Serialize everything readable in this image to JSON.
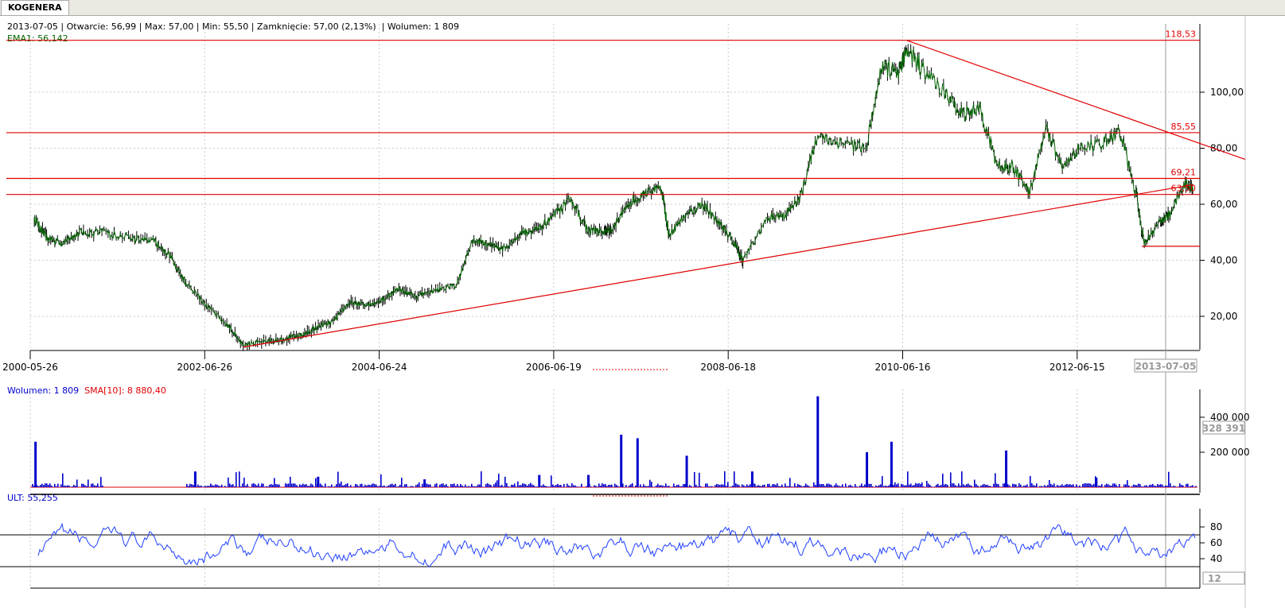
{
  "tab": {
    "label": "KOGENERA"
  },
  "info_line": "2013-07-05 | Otwarcie: 56,99 | Max: 57,00 | Min: 55,50 | Zamknięcie: 57,00 (2,13%)  | Wolumen: 1 809",
  "ema_label": "EMA1: 56,142",
  "volume_legend": {
    "wolumen": "Wolumen: 1 809",
    "sma": "SMA[10]: 8 880,40"
  },
  "ult_legend": "ULT: 55,255",
  "colors": {
    "price": "#006400",
    "bars": "#000000",
    "lines": "#e00000",
    "volume": "#0000cc",
    "ult": "#2040ff",
    "grid": "#c8c8c8"
  },
  "chart_data": [
    {
      "type": "line",
      "name": "price",
      "x_labels": [
        "2000-05-26",
        "2002-06-26",
        "2004-06-24",
        "2006-06-19",
        "2008-06-18",
        "2010-06-16",
        "2012-06-15"
      ],
      "cursor_date": "2013-07-05",
      "y_ticks": [
        "20,00",
        "40,00",
        "60,00",
        "80,00",
        "100,00"
      ],
      "y_tick_values": [
        20,
        40,
        60,
        80,
        100
      ],
      "ylim": [
        8,
        120
      ],
      "horizontal_levels": [
        {
          "value": 118.53,
          "label": "118,53"
        },
        {
          "value": 85.55,
          "label": "85,55"
        },
        {
          "value": 69.21,
          "label": "69,21"
        },
        {
          "value": 63.5,
          "label": "63,50"
        }
      ],
      "series": [
        {
          "values": [
            [
              2000.45,
              55
            ],
            [
              2000.6,
              48
            ],
            [
              2000.8,
              46
            ],
            [
              2001.0,
              50
            ],
            [
              2001.3,
              50
            ],
            [
              2001.6,
              48
            ],
            [
              2001.9,
              47
            ],
            [
              2002.1,
              42
            ],
            [
              2002.3,
              32
            ],
            [
              2002.55,
              24
            ],
            [
              2002.8,
              17
            ],
            [
              2003.0,
              10
            ],
            [
              2003.3,
              11
            ],
            [
              2003.5,
              12
            ],
            [
              2003.7,
              13
            ],
            [
              2003.9,
              16
            ],
            [
              2004.1,
              18
            ],
            [
              2004.3,
              25
            ],
            [
              2004.5,
              24
            ],
            [
              2004.7,
              26
            ],
            [
              2004.9,
              30
            ],
            [
              2005.1,
              27
            ],
            [
              2005.3,
              29
            ],
            [
              2005.6,
              31
            ],
            [
              2005.8,
              47
            ],
            [
              2006.0,
              46
            ],
            [
              2006.2,
              44
            ],
            [
              2006.4,
              50
            ],
            [
              2006.6,
              51
            ],
            [
              2006.8,
              56
            ],
            [
              2007.0,
              62
            ],
            [
              2007.2,
              51
            ],
            [
              2007.4,
              50
            ],
            [
              2007.5,
              51
            ],
            [
              2007.7,
              60
            ],
            [
              2007.9,
              64
            ],
            [
              2008.1,
              66
            ],
            [
              2008.2,
              49
            ],
            [
              2008.4,
              56
            ],
            [
              2008.6,
              60
            ],
            [
              2008.8,
              54
            ],
            [
              2009.0,
              46
            ],
            [
              2009.1,
              40
            ],
            [
              2009.4,
              55
            ],
            [
              2009.6,
              56
            ],
            [
              2009.8,
              62
            ],
            [
              2010.0,
              84
            ],
            [
              2010.3,
              82
            ],
            [
              2010.6,
              80
            ],
            [
              2010.8,
              110
            ],
            [
              2011.0,
              106
            ],
            [
              2011.1,
              116
            ],
            [
              2011.3,
              108
            ],
            [
              2011.6,
              98
            ],
            [
              2011.8,
              92
            ],
            [
              2012.0,
              94
            ],
            [
              2012.2,
              74
            ],
            [
              2012.4,
              73
            ],
            [
              2012.6,
              64
            ],
            [
              2012.8,
              88
            ],
            [
              2013.0,
              72
            ],
            [
              2013.2,
              80
            ],
            [
              2013.5,
              82
            ],
            [
              2013.7,
              86
            ],
            [
              2013.9,
              64
            ],
            [
              2014.0,
              46
            ],
            [
              2014.2,
              54
            ],
            [
              2014.3,
              56
            ],
            [
              2014.5,
              67
            ],
            [
              2014.6,
              66
            ]
          ]
        }
      ]
    },
    {
      "type": "bar",
      "name": "volume",
      "y_ticks": [
        "200 000",
        "400 000"
      ],
      "y_tick_values": [
        200000,
        400000
      ],
      "cursor_value": "328 391",
      "ylim": [
        0,
        520000
      ],
      "series": [
        {
          "name": "Wolumen",
          "spikes": [
            [
              2000.45,
              260000
            ],
            [
              2002.4,
              90000
            ],
            [
              2003.9,
              60000
            ],
            [
              2005.2,
              45000
            ],
            [
              2006.6,
              70000
            ],
            [
              2007.2,
              70000
            ],
            [
              2007.6,
              300000
            ],
            [
              2007.8,
              280000
            ],
            [
              2008.4,
              180000
            ],
            [
              2009.2,
              90000
            ],
            [
              2010.0,
              520000
            ],
            [
              2010.6,
              200000
            ],
            [
              2010.9,
              260000
            ],
            [
              2012.3,
              210000
            ],
            [
              2013.4,
              55000
            ]
          ]
        }
      ]
    },
    {
      "type": "line",
      "name": "ULT",
      "y_ticks": [
        "40",
        "60",
        "80"
      ],
      "y_tick_values": [
        40,
        60,
        80
      ],
      "thresholds": [
        70,
        30
      ],
      "cursor_value": "12",
      "ylim": [
        20,
        90
      ]
    }
  ]
}
